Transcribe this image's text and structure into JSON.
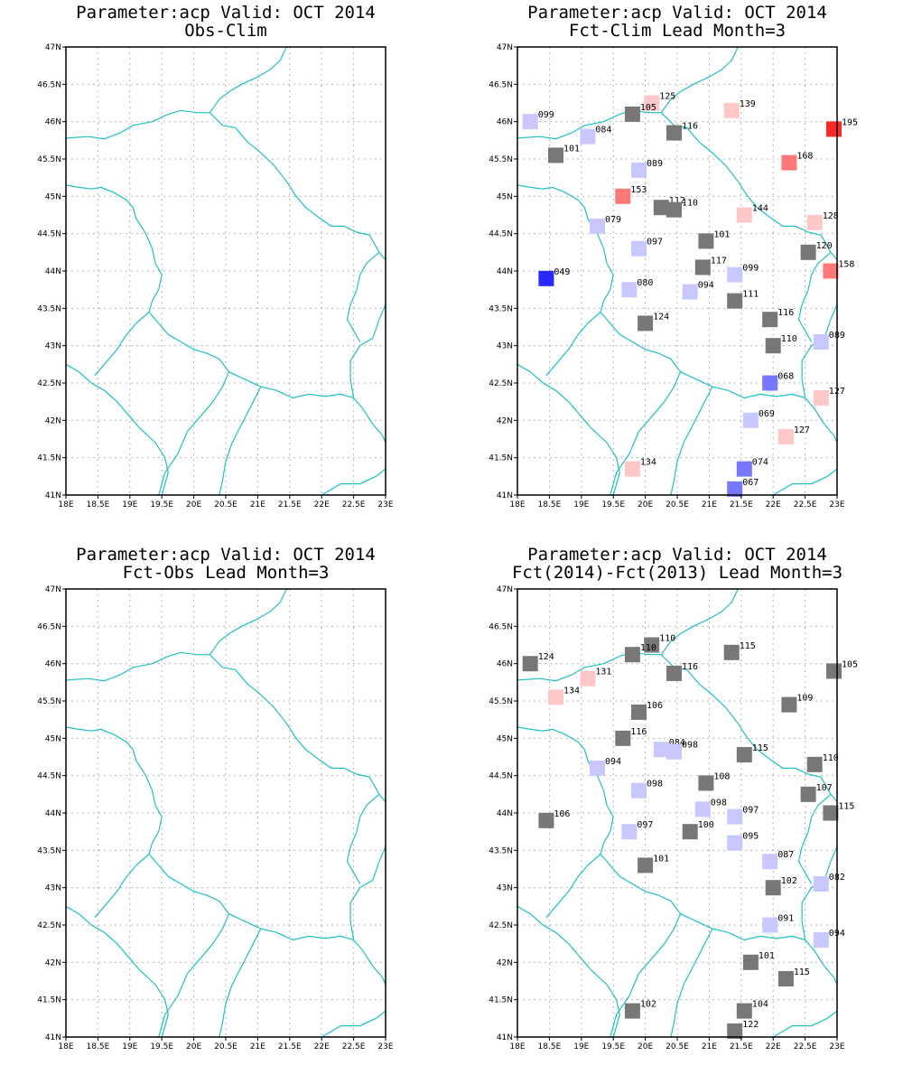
{
  "colors": {
    "border": "#20c0c0",
    "grid": "#b4b4b4",
    "gray": "#777777",
    "light_blue": "#c8c8ff",
    "mid_blue": "#7878ff",
    "blue": "#2828ff",
    "light_red": "#ffc8c8",
    "mid_red": "#ff7878",
    "red": "#ff2828"
  },
  "axes": {
    "lon_range": [
      18,
      23
    ],
    "lat_range": [
      41,
      47
    ],
    "x_ticks": [
      "18E",
      "18.5E",
      "19E",
      "19.5E",
      "20E",
      "20.5E",
      "21E",
      "21.5E",
      "22E",
      "22.5E",
      "23E"
    ],
    "y_ticks": [
      "41N",
      "41.5N",
      "42N",
      "42.5N",
      "43N",
      "43.5N",
      "44N",
      "44.5N",
      "45N",
      "45.5N",
      "46N",
      "46.5N",
      "47N"
    ]
  },
  "panels": [
    {
      "title_line1": "Parameter:acp Valid: OCT 2014",
      "title_line2": "Obs-Clim",
      "stations": []
    },
    {
      "title_line1": "Parameter:acp Valid: OCT 2014",
      "title_line2": "Fct-Clim Lead Month=3",
      "stations": [
        {
          "lon": 18.2,
          "lat": 46.0,
          "label": "099",
          "color": "light_blue"
        },
        {
          "lon": 20.1,
          "lat": 46.25,
          "label": "125",
          "color": "light_red"
        },
        {
          "lon": 19.8,
          "lat": 46.1,
          "label": "105",
          "color": "gray"
        },
        {
          "lon": 21.35,
          "lat": 46.15,
          "label": "139",
          "color": "light_red"
        },
        {
          "lon": 22.95,
          "lat": 45.9,
          "label": "195",
          "color": "red"
        },
        {
          "lon": 19.1,
          "lat": 45.8,
          "label": "084",
          "color": "light_blue"
        },
        {
          "lon": 20.45,
          "lat": 45.85,
          "label": "116",
          "color": "gray"
        },
        {
          "lon": 18.6,
          "lat": 45.55,
          "label": "101",
          "color": "gray"
        },
        {
          "lon": 19.9,
          "lat": 45.35,
          "label": "089",
          "color": "light_blue"
        },
        {
          "lon": 22.25,
          "lat": 45.45,
          "label": "168",
          "color": "mid_red"
        },
        {
          "lon": 19.65,
          "lat": 45.0,
          "label": "153",
          "color": "mid_red"
        },
        {
          "lon": 20.25,
          "lat": 44.85,
          "label": "112",
          "color": "gray"
        },
        {
          "lon": 20.45,
          "lat": 44.82,
          "label": "110",
          "color": "gray"
        },
        {
          "lon": 21.55,
          "lat": 44.75,
          "label": "144",
          "color": "light_red"
        },
        {
          "lon": 22.65,
          "lat": 44.65,
          "label": "128",
          "color": "light_red"
        },
        {
          "lon": 19.25,
          "lat": 44.6,
          "label": "079",
          "color": "light_blue"
        },
        {
          "lon": 20.95,
          "lat": 44.4,
          "label": "101",
          "color": "gray"
        },
        {
          "lon": 19.9,
          "lat": 44.3,
          "label": "097",
          "color": "light_blue"
        },
        {
          "lon": 22.55,
          "lat": 44.25,
          "label": "120",
          "color": "gray"
        },
        {
          "lon": 20.9,
          "lat": 44.05,
          "label": "117",
          "color": "gray"
        },
        {
          "lon": 21.4,
          "lat": 43.95,
          "label": "099",
          "color": "light_blue"
        },
        {
          "lon": 22.9,
          "lat": 44.0,
          "label": "158",
          "color": "mid_red"
        },
        {
          "lon": 18.45,
          "lat": 43.9,
          "label": "049",
          "color": "blue"
        },
        {
          "lon": 19.75,
          "lat": 43.75,
          "label": "080",
          "color": "light_blue"
        },
        {
          "lon": 20.7,
          "lat": 43.72,
          "label": "094",
          "color": "light_blue"
        },
        {
          "lon": 21.4,
          "lat": 43.6,
          "label": "111",
          "color": "gray"
        },
        {
          "lon": 20.0,
          "lat": 43.3,
          "label": "124",
          "color": "gray"
        },
        {
          "lon": 21.95,
          "lat": 43.35,
          "label": "116",
          "color": "gray"
        },
        {
          "lon": 22.0,
          "lat": 43.0,
          "label": "110",
          "color": "gray"
        },
        {
          "lon": 22.75,
          "lat": 43.05,
          "label": "089",
          "color": "light_blue"
        },
        {
          "lon": 21.95,
          "lat": 42.5,
          "label": "068",
          "color": "mid_blue"
        },
        {
          "lon": 22.75,
          "lat": 42.3,
          "label": "127",
          "color": "light_red"
        },
        {
          "lon": 21.65,
          "lat": 42.0,
          "label": "069",
          "color": "light_blue"
        },
        {
          "lon": 22.2,
          "lat": 41.78,
          "label": "127",
          "color": "light_red"
        },
        {
          "lon": 19.8,
          "lat": 41.35,
          "label": "134",
          "color": "light_red"
        },
        {
          "lon": 21.55,
          "lat": 41.35,
          "label": "074",
          "color": "mid_blue"
        },
        {
          "lon": 21.4,
          "lat": 41.08,
          "label": "067",
          "color": "mid_blue"
        }
      ]
    },
    {
      "title_line1": "Parameter:acp Valid: OCT 2014",
      "title_line2": "Fct-Obs Lead Month=3",
      "stations": []
    },
    {
      "title_line1": "Parameter:acp Valid: OCT 2014",
      "title_line2": "Fct(2014)-Fct(2013) Lead Month=3",
      "stations": [
        {
          "lon": 18.2,
          "lat": 46.0,
          "label": "124",
          "color": "gray"
        },
        {
          "lon": 20.1,
          "lat": 46.25,
          "label": "110",
          "color": "gray"
        },
        {
          "lon": 19.8,
          "lat": 46.12,
          "label": "110",
          "color": "gray"
        },
        {
          "lon": 21.35,
          "lat": 46.15,
          "label": "115",
          "color": "gray"
        },
        {
          "lon": 22.95,
          "lat": 45.9,
          "label": "105",
          "color": "gray"
        },
        {
          "lon": 19.1,
          "lat": 45.8,
          "label": "131",
          "color": "light_red"
        },
        {
          "lon": 20.45,
          "lat": 45.87,
          "label": "116",
          "color": "gray"
        },
        {
          "lon": 18.6,
          "lat": 45.55,
          "label": "134",
          "color": "light_red"
        },
        {
          "lon": 19.9,
          "lat": 45.35,
          "label": "106",
          "color": "gray"
        },
        {
          "lon": 22.25,
          "lat": 45.45,
          "label": "109",
          "color": "gray"
        },
        {
          "lon": 19.65,
          "lat": 45.0,
          "label": "116",
          "color": "gray"
        },
        {
          "lon": 20.25,
          "lat": 44.85,
          "label": "084",
          "color": "light_blue"
        },
        {
          "lon": 20.45,
          "lat": 44.82,
          "label": "098",
          "color": "light_blue"
        },
        {
          "lon": 21.55,
          "lat": 44.78,
          "label": "115",
          "color": "gray"
        },
        {
          "lon": 22.65,
          "lat": 44.65,
          "label": "110",
          "color": "gray"
        },
        {
          "lon": 19.25,
          "lat": 44.6,
          "label": "094",
          "color": "light_blue"
        },
        {
          "lon": 20.95,
          "lat": 44.4,
          "label": "108",
          "color": "gray"
        },
        {
          "lon": 19.9,
          "lat": 44.3,
          "label": "098",
          "color": "light_blue"
        },
        {
          "lon": 22.55,
          "lat": 44.25,
          "label": "107",
          "color": "gray"
        },
        {
          "lon": 20.9,
          "lat": 44.05,
          "label": "098",
          "color": "light_blue"
        },
        {
          "lon": 21.4,
          "lat": 43.95,
          "label": "097",
          "color": "light_blue"
        },
        {
          "lon": 22.9,
          "lat": 44.0,
          "label": "115",
          "color": "gray"
        },
        {
          "lon": 18.45,
          "lat": 43.9,
          "label": "106",
          "color": "gray"
        },
        {
          "lon": 19.75,
          "lat": 43.75,
          "label": "097",
          "color": "light_blue"
        },
        {
          "lon": 20.7,
          "lat": 43.75,
          "label": "100",
          "color": "gray"
        },
        {
          "lon": 21.4,
          "lat": 43.6,
          "label": "095",
          "color": "light_blue"
        },
        {
          "lon": 21.95,
          "lat": 43.35,
          "label": "087",
          "color": "light_blue"
        },
        {
          "lon": 20.0,
          "lat": 43.3,
          "label": "101",
          "color": "gray"
        },
        {
          "lon": 22.0,
          "lat": 43.0,
          "label": "102",
          "color": "gray"
        },
        {
          "lon": 22.75,
          "lat": 43.05,
          "label": "082",
          "color": "light_blue"
        },
        {
          "lon": 21.95,
          "lat": 42.5,
          "label": "091",
          "color": "light_blue"
        },
        {
          "lon": 22.75,
          "lat": 42.3,
          "label": "094",
          "color": "light_blue"
        },
        {
          "lon": 21.65,
          "lat": 42.0,
          "label": "101",
          "color": "gray"
        },
        {
          "lon": 22.2,
          "lat": 41.78,
          "label": "115",
          "color": "gray"
        },
        {
          "lon": 19.8,
          "lat": 41.35,
          "label": "102",
          "color": "gray"
        },
        {
          "lon": 21.55,
          "lat": 41.35,
          "label": "104",
          "color": "gray"
        },
        {
          "lon": 21.4,
          "lat": 41.08,
          "label": "122",
          "color": "gray"
        }
      ]
    }
  ]
}
